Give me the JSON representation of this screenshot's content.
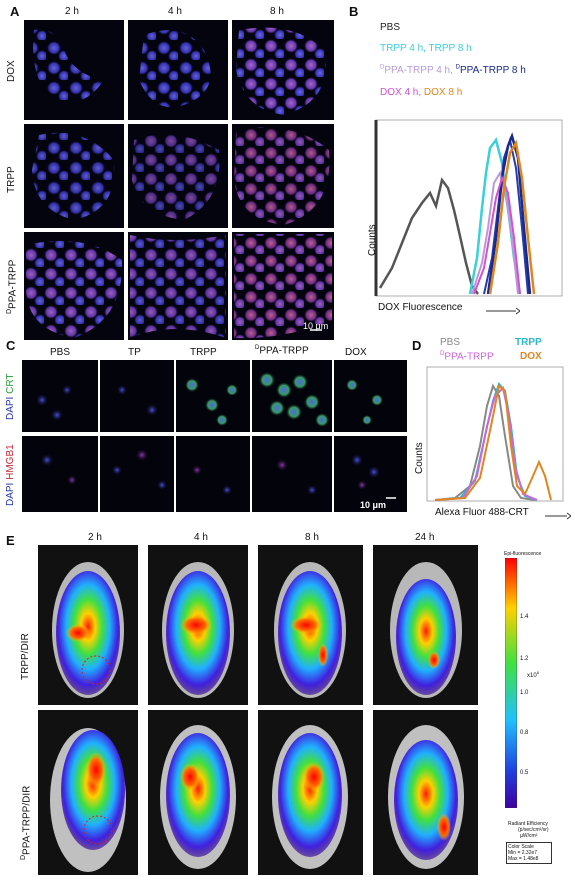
{
  "panels": {
    "A": {
      "label": "A",
      "time_labels": [
        "2 h",
        "4 h",
        "8 h"
      ],
      "row_labels": [
        "DOX",
        "TRPP",
        "DPPA-TRPP"
      ],
      "row3_prefix": "D",
      "row3_rest": "PPA-TRPP",
      "scale_bar": "10 μm"
    },
    "B": {
      "label": "B",
      "legend": {
        "pbs": "PBS",
        "trpp": "TRPP 4 h, TRPP  8 h",
        "dppa_prefix": "D",
        "dppa_4": "PPA-TRPP 4 h, ",
        "dppa_8": "PPA-TRPP 8 h",
        "dox4": "DOX 4 h, ",
        "dox8": "DOX 8 h"
      },
      "colors": {
        "pbs": "#555555",
        "trpp4": "#3ad0d8",
        "trpp8": "#2a3aa8",
        "dppa4": "#b99ad8",
        "dppa8": "#1a2a8a",
        "dox4": "#d54fd0",
        "dox8": "#e0861e"
      },
      "ylabel": "Counts",
      "xlabel": "DOX Fluorescence"
    },
    "C": {
      "label": "C",
      "col_labels": [
        "PBS",
        "TP",
        "TRPP",
        "DPPA-TRPP",
        "DOX"
      ],
      "dppa_prefix": "D",
      "dppa_rest": "PPA-TRPP",
      "row1_label_a": "DAPI",
      "row1_label_b": "CRT",
      "row2_label_a": "DAPI",
      "row2_label_b": "HMGB1",
      "scale_bar": "10 μm"
    },
    "D": {
      "label": "D",
      "legend": {
        "pbs": "PBS",
        "trpp": "TRPP",
        "dppa_prefix": "D",
        "dppa_rest": "PPA-TRPP",
        "dox": "DOX"
      },
      "colors": {
        "pbs": "#888888",
        "trpp": "#2bb8c8",
        "dppa": "#cc66dd",
        "dox": "#e0861e"
      },
      "ylabel": "Counts",
      "xlabel": "Alexa Fluor 488-CRT"
    },
    "E": {
      "label": "E",
      "time_labels": [
        "2 h",
        "4 h",
        "8  h",
        "24 h"
      ],
      "row_labels": [
        "TRPP/DIR",
        "DPPA-TRPP/DIR"
      ],
      "row2_prefix": "D",
      "row2_rest": "PPA-TRPP/DIR",
      "colorbar": {
        "title": "Epi-fluorescence",
        "ticks": [
          "1.4",
          "1.2",
          "1.0",
          "0.8",
          "0.5"
        ],
        "exponent": "x10",
        "exponent_power": "8",
        "unit_title": "Radiant Efficiency",
        "unit_line1": "(p/sec/cm²/sr)",
        "unit_line2": "µW/cm²",
        "scale_title": "Color Scale",
        "min": "Min = 2.32e7",
        "max": "Max = 1.48e8"
      }
    }
  },
  "chart_data": [
    {
      "type": "line",
      "xlabel": "DOX Fluorescence",
      "ylabel": "Counts",
      "series": [
        {
          "name": "PBS",
          "x": [
            0,
            1,
            2,
            3,
            4,
            5,
            6,
            7,
            8,
            9,
            10
          ],
          "y": [
            10,
            18,
            30,
            40,
            55,
            70,
            78,
            60,
            35,
            10,
            0
          ]
        },
        {
          "name": "TRPP 4 h",
          "x": [
            10,
            12,
            14,
            16,
            18,
            20
          ],
          "y": [
            5,
            40,
            85,
            80,
            30,
            2
          ]
        },
        {
          "name": "TRPP  8 h",
          "x": [
            14,
            16,
            18,
            20,
            22
          ],
          "y": [
            5,
            60,
            95,
            60,
            5
          ]
        },
        {
          "name": "PPA-TRPP 4 h",
          "x": [
            11,
            13,
            15,
            17,
            19,
            21
          ],
          "y": [
            5,
            35,
            75,
            70,
            25,
            2
          ]
        },
        {
          "name": "PPA-TRPP 8 h",
          "x": [
            14,
            16,
            18,
            20,
            22
          ],
          "y": [
            5,
            55,
            100,
            55,
            5
          ]
        },
        {
          "name": "DOX 4 h",
          "x": [
            11,
            13,
            15,
            17,
            19,
            21
          ],
          "y": [
            5,
            30,
            72,
            78,
            30,
            2
          ]
        },
        {
          "name": "DOX 8 h",
          "x": [
            14,
            16,
            18,
            20,
            22
          ],
          "y": [
            5,
            50,
            96,
            70,
            5
          ]
        }
      ]
    },
    {
      "type": "line",
      "xlabel": "Alexa Fluor 488-CRT",
      "ylabel": "Counts",
      "series": [
        {
          "name": "PBS",
          "x": [
            0,
            2,
            4,
            6,
            8,
            10,
            12,
            14,
            16
          ],
          "y": [
            0,
            10,
            50,
            95,
            70,
            30,
            5,
            0,
            0
          ]
        },
        {
          "name": "TRPP",
          "x": [
            0,
            2,
            4,
            6,
            8,
            10,
            12,
            14,
            16
          ],
          "y": [
            0,
            5,
            35,
            80,
            90,
            45,
            10,
            2,
            0
          ]
        },
        {
          "name": "PPA-TRPP",
          "x": [
            0,
            2,
            4,
            6,
            8,
            10,
            12,
            14,
            16
          ],
          "y": [
            0,
            6,
            40,
            85,
            88,
            40,
            8,
            2,
            0
          ]
        },
        {
          "name": "DOX",
          "x": [
            0,
            2,
            4,
            6,
            8,
            10,
            12,
            14,
            16
          ],
          "y": [
            0,
            4,
            30,
            75,
            92,
            30,
            10,
            40,
            0
          ]
        }
      ]
    }
  ]
}
